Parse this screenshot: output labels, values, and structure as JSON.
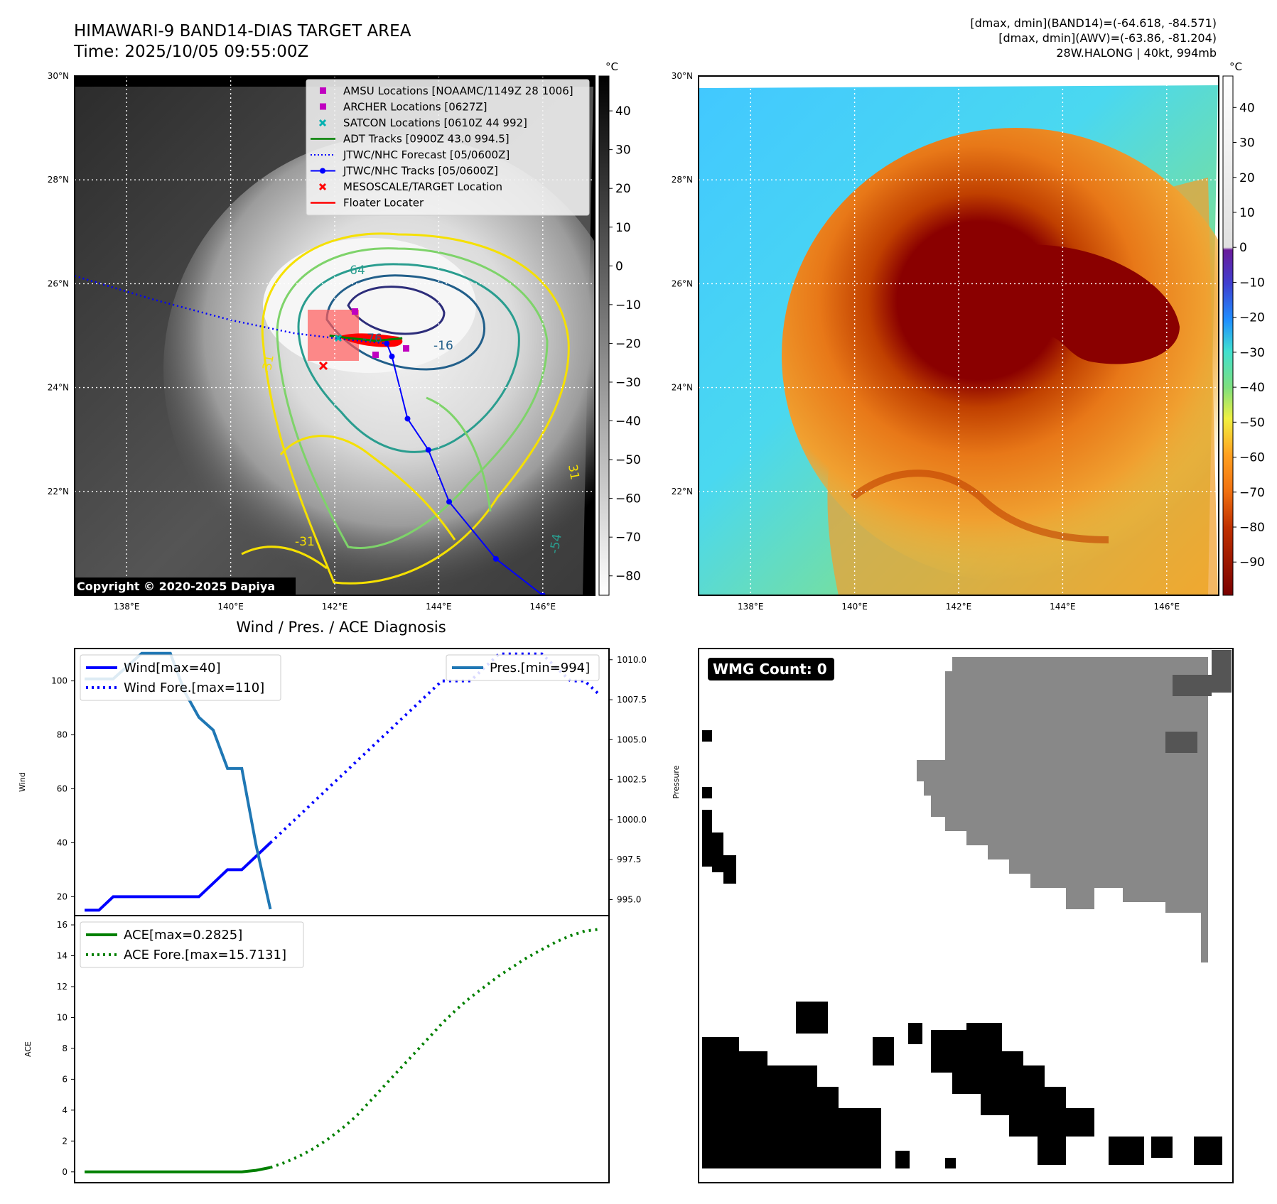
{
  "header": {
    "title_line1": "HIMAWARI-9 BAND14-DIAS TARGET AREA",
    "title_line2": "Time: 2025/10/05 09:55:00Z",
    "right_line1": "[dmax, dmin](BAND14)=(-64.618, -84.571)",
    "right_line2": "[dmax, dmin](AWV)=(-63.86, -81.204)",
    "right_line3": "28W.HALONG | 40kt, 994mb"
  },
  "maps": {
    "lat_labels": [
      "30°N",
      "28°N",
      "26°N",
      "24°N",
      "22°N"
    ],
    "lon_labels": [
      "138°E",
      "140°E",
      "142°E",
      "144°E",
      "146°E"
    ],
    "copyright": "Copyright © 2020-2025 Dapiya",
    "contour_labels": [
      "-64",
      "-76",
      "-76",
      "-16",
      "-31",
      "-54",
      "-31",
      "31",
      "-54",
      "-6"
    ],
    "legend": [
      {
        "label": "AMSU Locations [NOAAMC/1149Z 28 1006]",
        "marker": "square",
        "color": "#c000c0"
      },
      {
        "label": "ARCHER Locations [0627Z]",
        "marker": "square",
        "color": "#c000c0"
      },
      {
        "label": "SATCON Locations [0610Z 44 992]",
        "marker": "x",
        "color": "#00b0b0"
      },
      {
        "label": "ADT Tracks [0900Z 43.0 994.5]",
        "marker": "line",
        "color": "#008000"
      },
      {
        "label": "JTWC/NHC Forecast [05/0600Z]",
        "marker": "dotted",
        "color": "#0000ff"
      },
      {
        "label": "JTWC/NHC Tracks [05/0600Z]",
        "marker": "line-dot",
        "color": "#0000ff"
      },
      {
        "label": "MESOSCALE/TARGET Location",
        "marker": "x",
        "color": "#ff0000"
      },
      {
        "label": "Floater Locater",
        "marker": "line",
        "color": "#ff0000"
      }
    ],
    "gray_colorbar": {
      "unit": "°C",
      "ticks": [
        "40",
        "30",
        "20",
        "10",
        "0",
        "−10",
        "−20",
        "−30",
        "−40",
        "−50",
        "−60",
        "−70",
        "−80"
      ]
    },
    "color_colorbar": {
      "unit": "°C",
      "ticks": [
        "40",
        "30",
        "20",
        "10",
        "0",
        "−10",
        "−20",
        "−30",
        "−40",
        "−50",
        "−60",
        "−70",
        "−80",
        "−90"
      ]
    },
    "forecast_track": [
      [
        137.0,
        26.15
      ],
      [
        138.5,
        25.7
      ],
      [
        140.0,
        25.3
      ],
      [
        141.2,
        25.05
      ],
      [
        142.0,
        24.95
      ],
      [
        143.0,
        24.85
      ]
    ],
    "best_track": [
      [
        143.0,
        24.85
      ],
      [
        143.1,
        24.6
      ],
      [
        143.4,
        23.4
      ],
      [
        143.8,
        22.8
      ],
      [
        144.2,
        21.8
      ],
      [
        145.1,
        20.7
      ],
      [
        146.0,
        20.0
      ]
    ]
  },
  "diagnosis": {
    "title": "Wind / Pres. / ACE Diagnosis",
    "wind_ylabel": "Wind",
    "pres_ylabel": "Pressure",
    "ace_ylabel": "ACE",
    "wind_legend": [
      "Wind[max=40]",
      "Wind Fore.[max=110]"
    ],
    "pres_legend": [
      "Pres.[min=994]"
    ],
    "ace_legend": [
      "ACE[max=0.2825]",
      "ACE Fore.[max=15.7131]"
    ],
    "wind_yticks": [
      "20",
      "40",
      "60",
      "80",
      "100"
    ],
    "pres_yticks": [
      "995.0",
      "997.5",
      "1000.0",
      "1002.5",
      "1005.0",
      "1007.5",
      "1010.0"
    ],
    "ace_yticks": [
      "0",
      "2",
      "4",
      "6",
      "8",
      "10",
      "12",
      "14",
      "16"
    ],
    "wmg_label": "WMG Count: 0"
  },
  "chart_data": [
    {
      "type": "line",
      "ylabel": "Wind",
      "ylim": [
        13,
        112
      ],
      "x": [
        0,
        1,
        2,
        3,
        4,
        5,
        6,
        7,
        8,
        9,
        10,
        11,
        12,
        13,
        14,
        15,
        16,
        17,
        18,
        19,
        20,
        21,
        22,
        23,
        24,
        25,
        26,
        27,
        28,
        29,
        30,
        31,
        32,
        33,
        34,
        35,
        36
      ],
      "series": [
        {
          "name": "Wind[max=40]",
          "values": [
            15,
            15,
            20,
            20,
            20,
            20,
            20,
            20,
            20,
            25,
            30,
            30,
            35,
            40,
            null,
            null,
            null,
            null,
            null,
            null,
            null,
            null,
            null,
            null,
            null,
            null,
            null,
            null,
            null,
            null,
            null,
            null,
            null,
            null,
            null,
            null,
            null
          ]
        },
        {
          "name": "Wind Fore.[max=110]",
          "values": [
            null,
            null,
            null,
            null,
            null,
            null,
            null,
            null,
            null,
            null,
            null,
            null,
            null,
            40,
            45,
            50,
            55,
            60,
            65,
            70,
            75,
            80,
            85,
            90,
            95,
            100,
            100,
            100,
            105,
            110,
            110,
            110,
            110,
            105,
            100,
            100,
            95
          ]
        }
      ]
    },
    {
      "type": "line",
      "ylabel": "Pressure",
      "ylim": [
        994,
        1010.7
      ],
      "x": [
        0,
        1,
        2,
        3,
        4,
        5,
        6,
        7,
        8,
        9,
        10,
        11,
        12,
        13
      ],
      "series": [
        {
          "name": "Pres.[min=994]",
          "values": [
            1008.8,
            1008.8,
            1008.8,
            1009.6,
            1010.4,
            1010.4,
            1010.4,
            1008.0,
            1006.4,
            1005.6,
            1003.2,
            1003.2,
            998.4,
            994.4
          ]
        }
      ]
    },
    {
      "type": "line",
      "ylabel": "ACE",
      "ylim": [
        -0.7,
        16.6
      ],
      "x": [
        0,
        1,
        2,
        3,
        4,
        5,
        6,
        7,
        8,
        9,
        10,
        11,
        12,
        13,
        14,
        15,
        16,
        17,
        18,
        19,
        20,
        21,
        22,
        23,
        24,
        25,
        26,
        27,
        28,
        29,
        30,
        31,
        32,
        33,
        34,
        35,
        36
      ],
      "series": [
        {
          "name": "ACE[max=0.2825]",
          "values": [
            0,
            0,
            0,
            0,
            0,
            0,
            0,
            0,
            0,
            0,
            0,
            0,
            0.1,
            0.2825,
            null,
            null,
            null,
            null,
            null,
            null,
            null,
            null,
            null,
            null,
            null,
            null,
            null,
            null,
            null,
            null,
            null,
            null,
            null,
            null,
            null,
            null,
            null
          ]
        },
        {
          "name": "ACE Fore.[max=15.7131]",
          "values": [
            null,
            null,
            null,
            null,
            null,
            null,
            null,
            null,
            null,
            null,
            null,
            null,
            null,
            0.2825,
            0.6,
            1.0,
            1.5,
            2.1,
            2.8,
            3.6,
            4.6,
            5.6,
            6.6,
            7.6,
            8.6,
            9.6,
            10.5,
            11.3,
            12.0,
            12.7,
            13.3,
            13.9,
            14.4,
            14.9,
            15.3,
            15.6,
            15.7131
          ]
        }
      ]
    }
  ]
}
